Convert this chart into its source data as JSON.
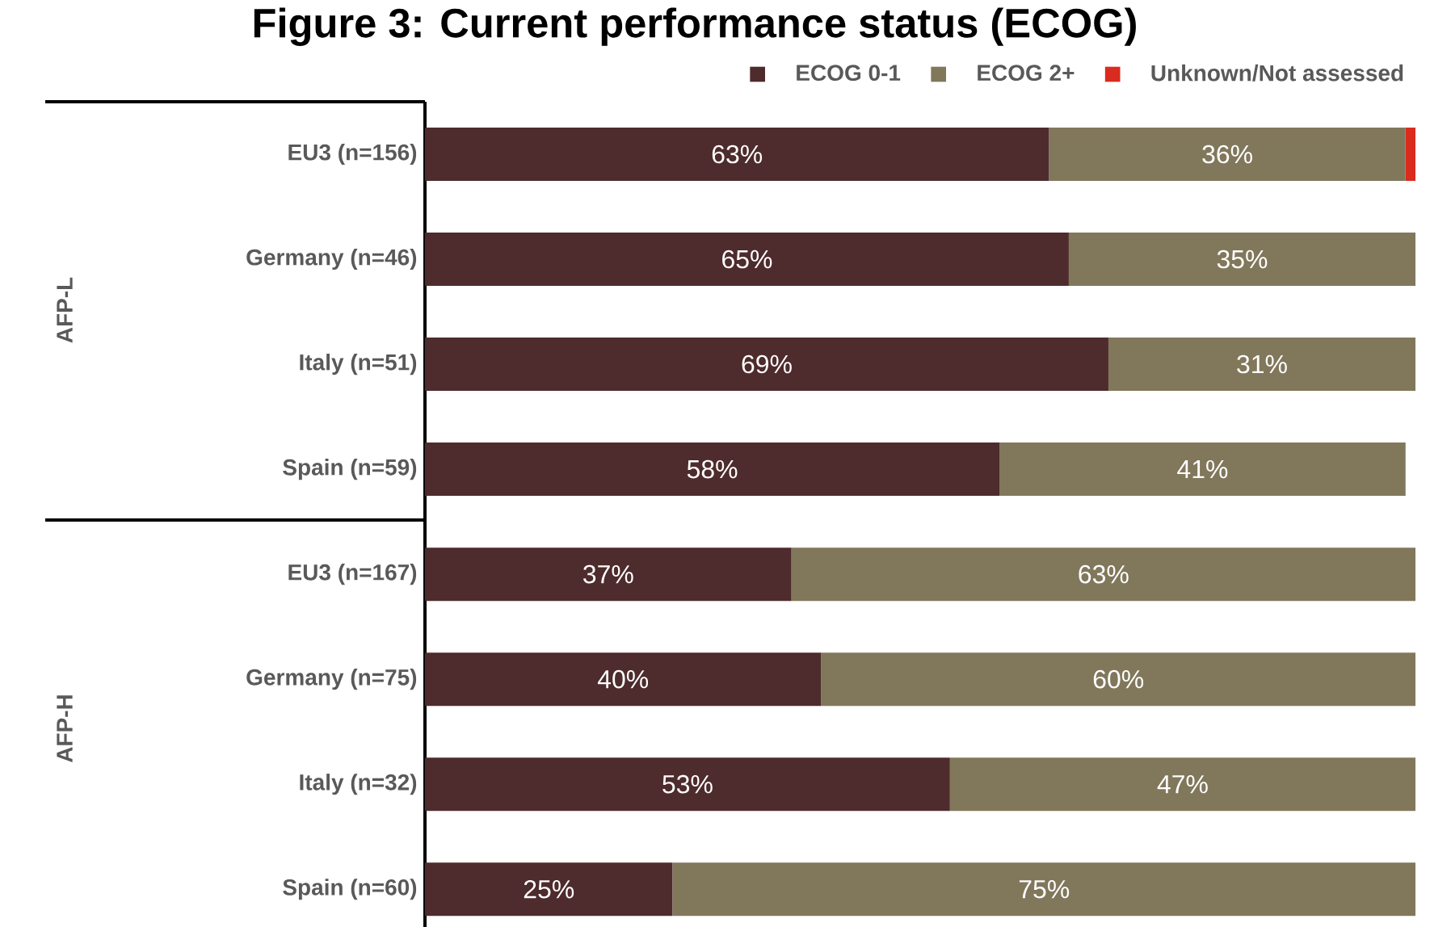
{
  "chart_data": {
    "type": "bar",
    "orientation": "horizontal",
    "stacked": true,
    "title": "Figure 3: Current performance status (ECOG)",
    "categories": [
      "EU3 (n=156)",
      "Germany (n=46)",
      "Italy (n=51)",
      "Spain (n=59)",
      "EU3 (n=167)",
      "Germany (n=75)",
      "Italy (n=32)",
      "Spain (n=60)"
    ],
    "series": [
      {
        "name": "ECOG 0-1",
        "color": "#4e2b2c",
        "values": [
          63,
          65,
          69,
          58,
          37,
          40,
          53,
          25
        ],
        "value_labels": [
          "63%",
          "65%",
          "69%",
          "58%",
          "37%",
          "40%",
          "53%",
          "25%"
        ]
      },
      {
        "name": "ECOG 2+",
        "color": "#81775b",
        "values": [
          36,
          35,
          31,
          41,
          63,
          60,
          47,
          75
        ],
        "value_labels": [
          "36%",
          "35%",
          "31%",
          "41%",
          "63%",
          "60%",
          "47%",
          "75%"
        ]
      },
      {
        "name": "Unknown/Not assessed",
        "color": "#d92b1e",
        "values": [
          1,
          null,
          null,
          null,
          null,
          null,
          null,
          null
        ]
      }
    ],
    "annotations": [
      "AFP-L",
      "AFP-H"
    ],
    "xlim": [
      0,
      100
    ],
    "tick_labels": "y",
    "legend": "top"
  }
}
